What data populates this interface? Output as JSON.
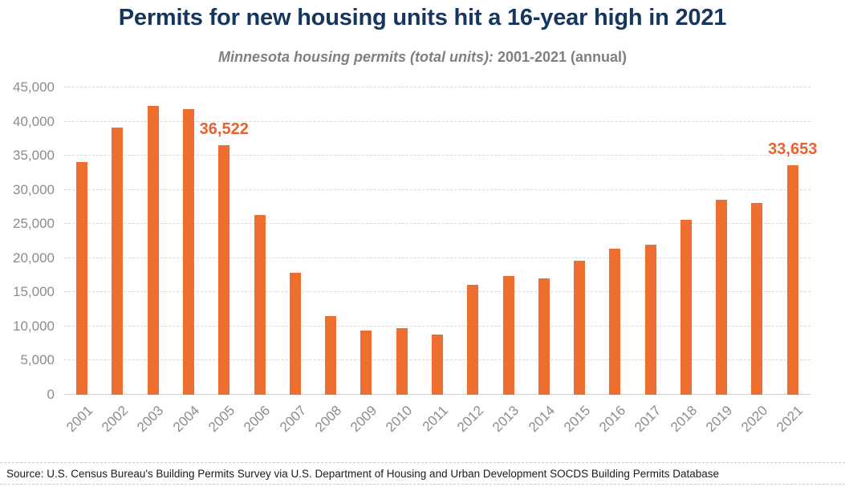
{
  "header": {
    "title": "Permits for new housing units hit a 16-year high in 2021",
    "subtitle_italic": "Minnesota housing permits (total units):",
    "subtitle_rest": " 2001-2021 (annual)"
  },
  "chart_data": {
    "type": "bar",
    "title": "Permits for new housing units hit a 16-year high in 2021",
    "subtitle": "Minnesota housing permits (total units): 2001-2021 (annual)",
    "xlabel": "",
    "ylabel": "",
    "categories": [
      "2001",
      "2002",
      "2003",
      "2004",
      "2005",
      "2006",
      "2007",
      "2008",
      "2009",
      "2010",
      "2011",
      "2012",
      "2013",
      "2014",
      "2015",
      "2016",
      "2017",
      "2018",
      "2019",
      "2020",
      "2021"
    ],
    "values": [
      34100,
      39100,
      42300,
      41800,
      36522,
      26300,
      17900,
      11500,
      9400,
      9800,
      8800,
      16100,
      17400,
      17000,
      19600,
      21400,
      22000,
      25600,
      28600,
      28100,
      33653
    ],
    "annotations": {
      "2005": "36,522",
      "2021": "33,653"
    },
    "ylim": [
      0,
      45000
    ],
    "y_ticks": [
      {
        "value": 45000,
        "label": "45,000"
      },
      {
        "value": 40000,
        "label": "40,000"
      },
      {
        "value": 35000,
        "label": "35,000"
      },
      {
        "value": 30000,
        "label": "30,000"
      },
      {
        "value": 25000,
        "label": "25,000"
      },
      {
        "value": 20000,
        "label": "20,000"
      },
      {
        "value": 15000,
        "label": "15,000"
      },
      {
        "value": 10000,
        "label": "10,000"
      },
      {
        "value": 5000,
        "label": "5,000"
      },
      {
        "value": 0,
        "label": "0"
      }
    ],
    "x_tick_rotation": -45,
    "grid": "horizontal-dashed",
    "legend": "none"
  },
  "footer": {
    "source": "Source: U.S. Census Bureau's Building Permits Survey via U.S. Department of Housing and Urban Development SOCDS Building Permits Database"
  },
  "colors": {
    "bar": "#ED6E2E",
    "annotation": "#E9612E",
    "title": "#17365D",
    "subtitle": "#7F7F7F",
    "axis": "#8C8C8C",
    "grid": "#D8D8D8",
    "baseline": "#D0D0D0",
    "divider": "#CACACA",
    "source": "#1A1A1A"
  }
}
